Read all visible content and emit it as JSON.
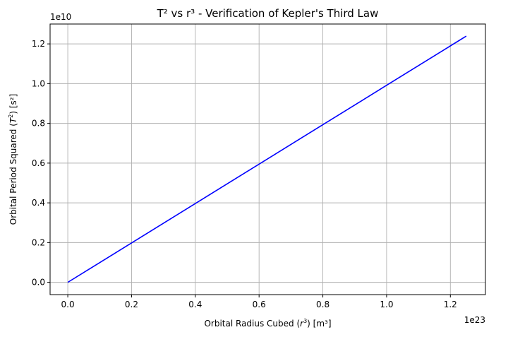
{
  "chart_data": {
    "type": "line",
    "title": "T² vs r³ - Verification of Kepler's Third Law",
    "xlabel_text": "Orbital Radius Cubed (",
    "xlabel_math": "r",
    "xlabel_sup": "3",
    "xlabel_unit": ") [m³]",
    "ylabel_text": "Orbital Period Squared (",
    "ylabel_math": "T",
    "ylabel_sup": "2",
    "ylabel_unit": ") [s²]",
    "x_multiplier": "1e23",
    "y_multiplier": "1e10",
    "xlim": [
      -0.0555,
      1.31
    ],
    "ylim": [
      -0.0618,
      1.3
    ],
    "x_ticks": [
      0.0,
      0.2,
      0.4,
      0.6,
      0.8,
      1.0,
      1.2
    ],
    "x_tick_labels": [
      "0.0",
      "0.2",
      "0.4",
      "0.6",
      "0.8",
      "1.0",
      "1.2"
    ],
    "y_ticks": [
      0.0,
      0.2,
      0.4,
      0.6,
      0.8,
      1.0,
      1.2
    ],
    "y_tick_labels": [
      "0.0",
      "0.2",
      "0.4",
      "0.6",
      "0.8",
      "1.0",
      "1.2"
    ],
    "grid": true,
    "series": [
      {
        "color": "#0000ff",
        "x": [
          0.0,
          0.25,
          0.5,
          0.75,
          1.0,
          1.25
        ],
        "y": [
          0.0,
          0.2479,
          0.4958,
          0.7437,
          0.9916,
          1.2395
        ]
      }
    ]
  }
}
